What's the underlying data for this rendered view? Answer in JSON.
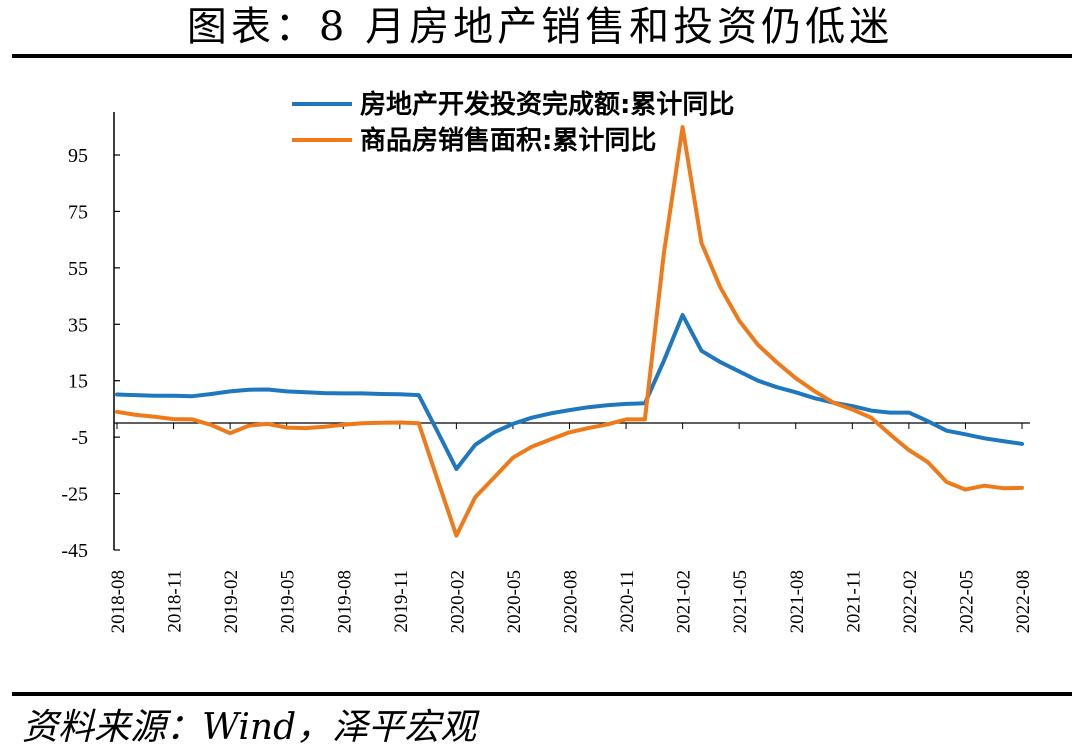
{
  "title": "图表：8 月房地产销售和投资仍低迷",
  "source": "资料来源：Wind，泽平宏观",
  "chart_data": {
    "type": "line",
    "title": "图表：8 月房地产销售和投资仍低迷",
    "xlabel": "",
    "ylabel": "",
    "ylim": [
      -45,
      105
    ],
    "yticks": [
      95,
      75,
      55,
      35,
      15,
      -5,
      -25,
      -45
    ],
    "ytick_labels": [
      "95",
      "75",
      "55",
      "35",
      "15",
      "-5",
      "-25",
      "-45"
    ],
    "xtick_labels": [
      "2018-08",
      "2018-11",
      "2019-02",
      "2019-05",
      "2019-08",
      "2019-11",
      "2020-02",
      "2020-05",
      "2020-08",
      "2020-11",
      "2021-02",
      "2021-05",
      "2021-08",
      "2021-11",
      "2022-02",
      "2022-05",
      "2022-08"
    ],
    "legend_position": "top-center",
    "grid": false,
    "series": [
      {
        "name": "房地产开发投资完成额:累计同比",
        "color": "#1f77c0",
        "points": [
          [
            "2018-08",
            10.1
          ],
          [
            "2018-09",
            9.9
          ],
          [
            "2018-10",
            9.7
          ],
          [
            "2018-11",
            9.7
          ],
          [
            "2018-12",
            9.5
          ],
          [
            "2019-01",
            10.3
          ],
          [
            "2019-02",
            11.2
          ],
          [
            "2019-03",
            11.8
          ],
          [
            "2019-04",
            11.9
          ],
          [
            "2019-05",
            11.2
          ],
          [
            "2019-06",
            10.9
          ],
          [
            "2019-07",
            10.6
          ],
          [
            "2019-08",
            10.5
          ],
          [
            "2019-09",
            10.5
          ],
          [
            "2019-10",
            10.3
          ],
          [
            "2019-11",
            10.2
          ],
          [
            "2019-12",
            9.9
          ],
          [
            "2020-01",
            -3.0
          ],
          [
            "2020-02",
            -16.3
          ],
          [
            "2020-03",
            -7.7
          ],
          [
            "2020-04",
            -3.3
          ],
          [
            "2020-05",
            -0.3
          ],
          [
            "2020-06",
            1.9
          ],
          [
            "2020-07",
            3.4
          ],
          [
            "2020-08",
            4.6
          ],
          [
            "2020-09",
            5.6
          ],
          [
            "2020-10",
            6.3
          ],
          [
            "2020-11",
            6.8
          ],
          [
            "2020-12",
            7.0
          ],
          [
            "2021-01",
            22.0
          ],
          [
            "2021-02",
            38.3
          ],
          [
            "2021-03",
            25.6
          ],
          [
            "2021-04",
            21.6
          ],
          [
            "2021-05",
            18.3
          ],
          [
            "2021-06",
            15.0
          ],
          [
            "2021-07",
            12.7
          ],
          [
            "2021-08",
            10.9
          ],
          [
            "2021-09",
            8.8
          ],
          [
            "2021-10",
            7.2
          ],
          [
            "2021-11",
            6.0
          ],
          [
            "2021-12",
            4.4
          ],
          [
            "2022-01",
            3.7
          ],
          [
            "2022-02",
            3.7
          ],
          [
            "2022-03",
            0.7
          ],
          [
            "2022-04",
            -2.7
          ],
          [
            "2022-05",
            -4.0
          ],
          [
            "2022-06",
            -5.4
          ],
          [
            "2022-07",
            -6.4
          ],
          [
            "2022-08",
            -7.4
          ]
        ]
      },
      {
        "name": "商品房销售面积:累计同比",
        "color": "#f07a1a",
        "points": [
          [
            "2018-08",
            4.0
          ],
          [
            "2018-09",
            2.9
          ],
          [
            "2018-10",
            2.2
          ],
          [
            "2018-11",
            1.4
          ],
          [
            "2018-12",
            1.3
          ],
          [
            "2019-01",
            -0.7
          ],
          [
            "2019-02",
            -3.6
          ],
          [
            "2019-03",
            -0.9
          ],
          [
            "2019-04",
            -0.3
          ],
          [
            "2019-05",
            -1.6
          ],
          [
            "2019-06",
            -1.8
          ],
          [
            "2019-07",
            -1.3
          ],
          [
            "2019-08",
            -0.6
          ],
          [
            "2019-09",
            -0.1
          ],
          [
            "2019-10",
            0.1
          ],
          [
            "2019-11",
            0.2
          ],
          [
            "2019-12",
            -0.1
          ],
          [
            "2020-01",
            -20.0
          ],
          [
            "2020-02",
            -39.9
          ],
          [
            "2020-03",
            -26.3
          ],
          [
            "2020-04",
            -19.3
          ],
          [
            "2020-05",
            -12.3
          ],
          [
            "2020-06",
            -8.4
          ],
          [
            "2020-07",
            -5.8
          ],
          [
            "2020-08",
            -3.3
          ],
          [
            "2020-09",
            -1.8
          ],
          [
            "2020-10",
            -0.5
          ],
          [
            "2020-11",
            1.3
          ],
          [
            "2020-12",
            1.3
          ],
          [
            "2021-01",
            60.0
          ],
          [
            "2021-02",
            104.9
          ],
          [
            "2021-03",
            63.8
          ],
          [
            "2021-04",
            48.1
          ],
          [
            "2021-05",
            36.3
          ],
          [
            "2021-06",
            27.7
          ],
          [
            "2021-07",
            21.5
          ],
          [
            "2021-08",
            15.9
          ],
          [
            "2021-09",
            11.3
          ],
          [
            "2021-10",
            7.2
          ],
          [
            "2021-11",
            4.8
          ],
          [
            "2021-12",
            1.9
          ],
          [
            "2022-01",
            -4.0
          ],
          [
            "2022-02",
            -9.6
          ],
          [
            "2022-03",
            -13.8
          ],
          [
            "2022-04",
            -20.9
          ],
          [
            "2022-05",
            -23.6
          ],
          [
            "2022-06",
            -22.2
          ],
          [
            "2022-07",
            -23.1
          ],
          [
            "2022-08",
            -23.0
          ]
        ]
      }
    ]
  }
}
